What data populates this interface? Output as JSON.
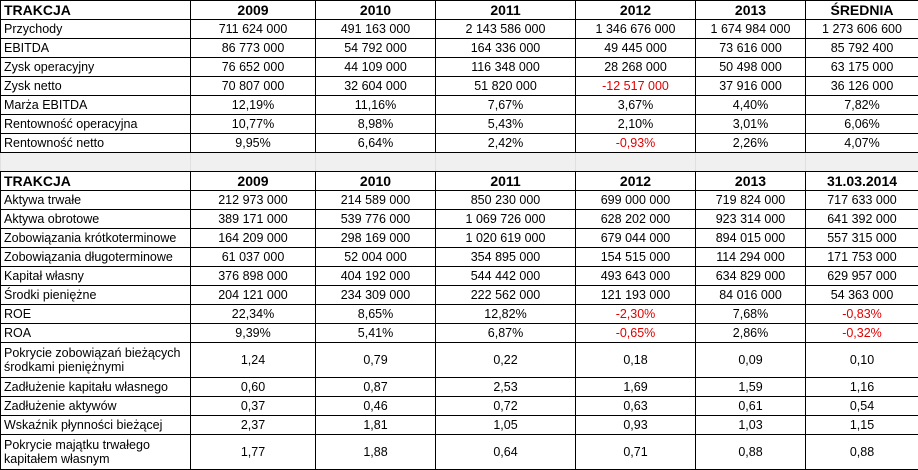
{
  "colors": {
    "negative": "#e00000",
    "separator": "#f0f0f0"
  },
  "table1": {
    "headers": [
      "TRAKCJA",
      "2009",
      "2010",
      "2011",
      "2012",
      "2013",
      "ŚREDNIA"
    ],
    "rows": [
      {
        "label": "Przychody",
        "values": [
          "711 624 000",
          "491 163 000",
          "2 143 586 000",
          "1 346 676 000",
          "1 674 984 000",
          "1 273 606 600"
        ]
      },
      {
        "label": "EBITDA",
        "values": [
          "86 773 000",
          "54 792 000",
          "164 336 000",
          "49 445 000",
          "73 616 000",
          "85 792 400"
        ]
      },
      {
        "label": "Zysk operacyjny",
        "values": [
          "76 652 000",
          "44 109 000",
          "116 348 000",
          "28 268 000",
          "50 498 000",
          "63 175 000"
        ]
      },
      {
        "label": "Zysk netto",
        "values": [
          "70 807 000",
          "32 604 000",
          "51 820 000",
          "-12 517 000",
          "37 916 000",
          "36 126 000"
        ]
      },
      {
        "label": "Marża EBITDA",
        "values": [
          "12,19%",
          "11,16%",
          "7,67%",
          "3,67%",
          "4,40%",
          "7,82%"
        ]
      },
      {
        "label": "Rentowność operacyjna",
        "values": [
          "10,77%",
          "8,98%",
          "5,43%",
          "2,10%",
          "3,01%",
          "6,06%"
        ]
      },
      {
        "label": "Rentowność netto",
        "values": [
          "9,95%",
          "6,64%",
          "2,42%",
          "-0,93%",
          "2,26%",
          "4,07%"
        ]
      }
    ]
  },
  "table2": {
    "headers": [
      "TRAKCJA",
      "2009",
      "2010",
      "2011",
      "2012",
      "2013",
      "31.03.2014"
    ],
    "rows": [
      {
        "label": "Aktywa trwałe",
        "values": [
          "212 973 000",
          "214 589 000",
          "850 230 000",
          "699 000 000",
          "719 824 000",
          "717 633 000"
        ]
      },
      {
        "label": "Aktywa obrotowe",
        "values": [
          "389 171 000",
          "539 776 000",
          "1 069 726 000",
          "628 202 000",
          "923 314 000",
          "641 392 000"
        ]
      },
      {
        "label": "Zobowiązania krótkoterminowe",
        "values": [
          "164 209 000",
          "298 169 000",
          "1 020 619 000",
          "679 044 000",
          "894 015 000",
          "557 315 000"
        ]
      },
      {
        "label": "Zobowiązania długoterminowe",
        "values": [
          "61 037 000",
          "52 004 000",
          "354 895 000",
          "154 515 000",
          "114 294 000",
          "171 753 000"
        ]
      },
      {
        "label": "Kapitał własny",
        "values": [
          "376 898 000",
          "404 192 000",
          "544 442 000",
          "493 643 000",
          "634 829 000",
          "629 957 000"
        ]
      },
      {
        "label": "Środki pieniężne",
        "values": [
          "204 121 000",
          "234 309 000",
          "222 562 000",
          "121 193 000",
          "84 016 000",
          "54 363 000"
        ]
      },
      {
        "label": "ROE",
        "values": [
          "22,34%",
          "8,65%",
          "12,82%",
          "-2,30%",
          "7,68%",
          "-0,83%"
        ]
      },
      {
        "label": "ROA",
        "values": [
          "9,39%",
          "5,41%",
          "6,87%",
          "-0,65%",
          "2,86%",
          "-0,32%"
        ]
      },
      {
        "label": "Pokrycie zobowiązań bieżących środkami pieniężnymi",
        "values": [
          "1,24",
          "0,79",
          "0,22",
          "0,18",
          "0,09",
          "0,10"
        ],
        "tall": true
      },
      {
        "label": "Zadłużenie kapitału własnego",
        "values": [
          "0,60",
          "0,87",
          "2,53",
          "1,69",
          "1,59",
          "1,16"
        ]
      },
      {
        "label": "Zadłużenie aktywów",
        "values": [
          "0,37",
          "0,46",
          "0,72",
          "0,63",
          "0,61",
          "0,54"
        ]
      },
      {
        "label": "Wskaźnik płynności bieżącej",
        "values": [
          "2,37",
          "1,81",
          "1,05",
          "0,93",
          "1,03",
          "1,15"
        ]
      },
      {
        "label": "Pokrycie majątku trwałego kapitałem własnym",
        "values": [
          "1,77",
          "1,88",
          "0,64",
          "0,71",
          "0,88",
          "0,88"
        ],
        "tall": true
      }
    ]
  }
}
